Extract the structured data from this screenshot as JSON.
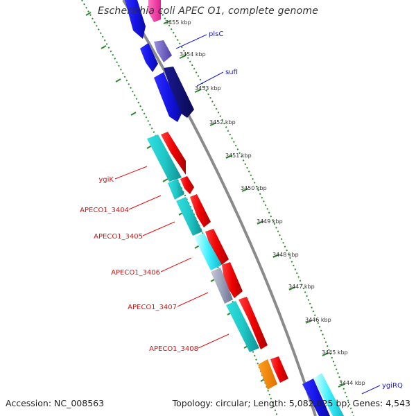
{
  "title": "Escherichia coli APEC O1, complete genome",
  "accession": "Accession: NC_008563",
  "summary": "Topology: circular; Length: 5,082,025 bp; Genes: 4,543",
  "kbp_ticks": [
    {
      "label": "3455 kbp"
    },
    {
      "label": "3454 kbp"
    },
    {
      "label": "3453 kbp"
    },
    {
      "label": "3452 kbp"
    },
    {
      "label": "3451 kbp"
    },
    {
      "label": "3450 kbp"
    },
    {
      "label": "3449 kbp"
    },
    {
      "label": "3448 kbp"
    },
    {
      "label": "3447 kbp"
    },
    {
      "label": "3446 kbp"
    },
    {
      "label": "3445 kbp"
    },
    {
      "label": "3444 kbp"
    }
  ],
  "gene_labels_blue": [
    "plsC",
    "sufI",
    "ygiRQ"
  ],
  "gene_labels_red": [
    "ygiK",
    "APECO1_3404",
    "APECO1_3405",
    "APECO1_3406",
    "APECO1_3407",
    "APECO1_3408"
  ],
  "colors": {
    "blue_label": "#1a1acc",
    "red_label": "#dd1111",
    "backbone": "#888888",
    "tick_green": "#228822"
  }
}
